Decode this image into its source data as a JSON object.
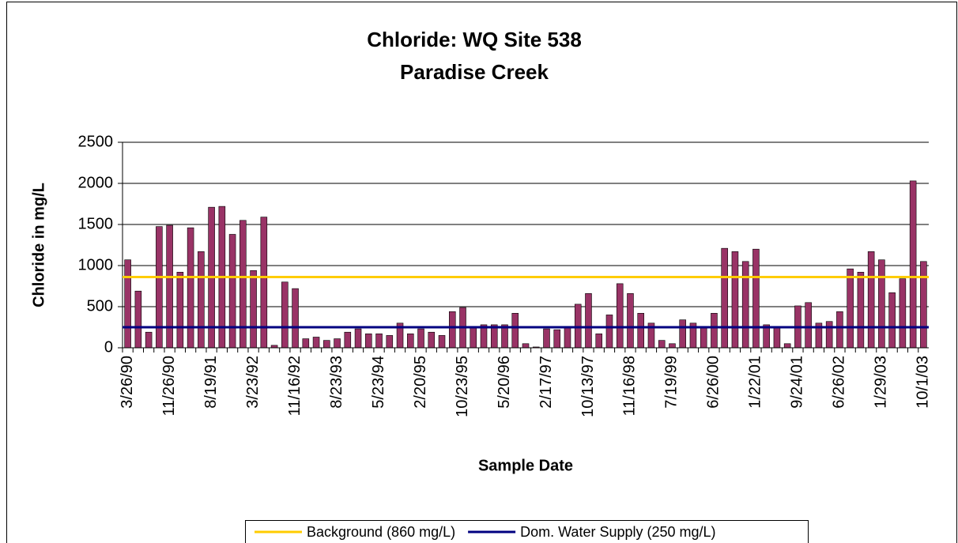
{
  "chart_data": {
    "type": "bar",
    "title": "Chloride: WQ Site 538",
    "subtitle": "Paradise Creek",
    "x_label": "Sample Date",
    "y_label": "Chloride in mg/L",
    "categories": [
      "3/26/90",
      null,
      null,
      null,
      "11/26/90",
      null,
      null,
      null,
      "8/19/91",
      null,
      null,
      null,
      "3/23/92",
      null,
      null,
      null,
      "11/16/92",
      null,
      null,
      null,
      "8/23/93",
      null,
      null,
      null,
      "5/23/94",
      null,
      null,
      null,
      "2/20/95",
      null,
      null,
      null,
      "10/23/95",
      null,
      null,
      null,
      "5/20/96",
      null,
      null,
      null,
      "2/17/97",
      null,
      null,
      null,
      "10/13/97",
      null,
      null,
      null,
      "11/16/98",
      null,
      null,
      null,
      "7/19/99",
      null,
      null,
      null,
      "6/26/00",
      null,
      null,
      null,
      "1/22/01",
      null,
      null,
      null,
      "9/24/01",
      null,
      null,
      null,
      "6/26/02",
      null,
      null,
      null,
      "1/29/03",
      null,
      null,
      null,
      "10/1/03"
    ],
    "values": [
      1070,
      690,
      190,
      1475,
      1490,
      920,
      1460,
      1170,
      1710,
      1720,
      1380,
      1550,
      940,
      1590,
      30,
      800,
      720,
      110,
      130,
      90,
      110,
      190,
      230,
      170,
      170,
      150,
      300,
      170,
      230,
      190,
      150,
      440,
      490,
      260,
      280,
      280,
      280,
      420,
      50,
      10,
      230,
      220,
      260,
      530,
      660,
      170,
      400,
      780,
      660,
      420,
      300,
      90,
      50,
      340,
      300,
      260,
      420,
      1210,
      1170,
      1050,
      1200,
      280,
      260,
      50,
      510,
      550,
      300,
      320,
      440,
      960,
      920,
      1170,
      1070,
      670,
      840,
      2030,
      1050
    ],
    "color": "#993366",
    "ylim": [
      0,
      2500
    ],
    "yticks": [
      0,
      500,
      1000,
      1500,
      2000,
      2500
    ],
    "grid": true,
    "reference_lines": [
      {
        "name": "Background (860 mg/L)",
        "value": 860,
        "color": "#ffcc00"
      },
      {
        "name": "Dom. Water Supply (250 mg/L)",
        "value": 250,
        "color": "#000080"
      }
    ],
    "legend": "bottom"
  }
}
